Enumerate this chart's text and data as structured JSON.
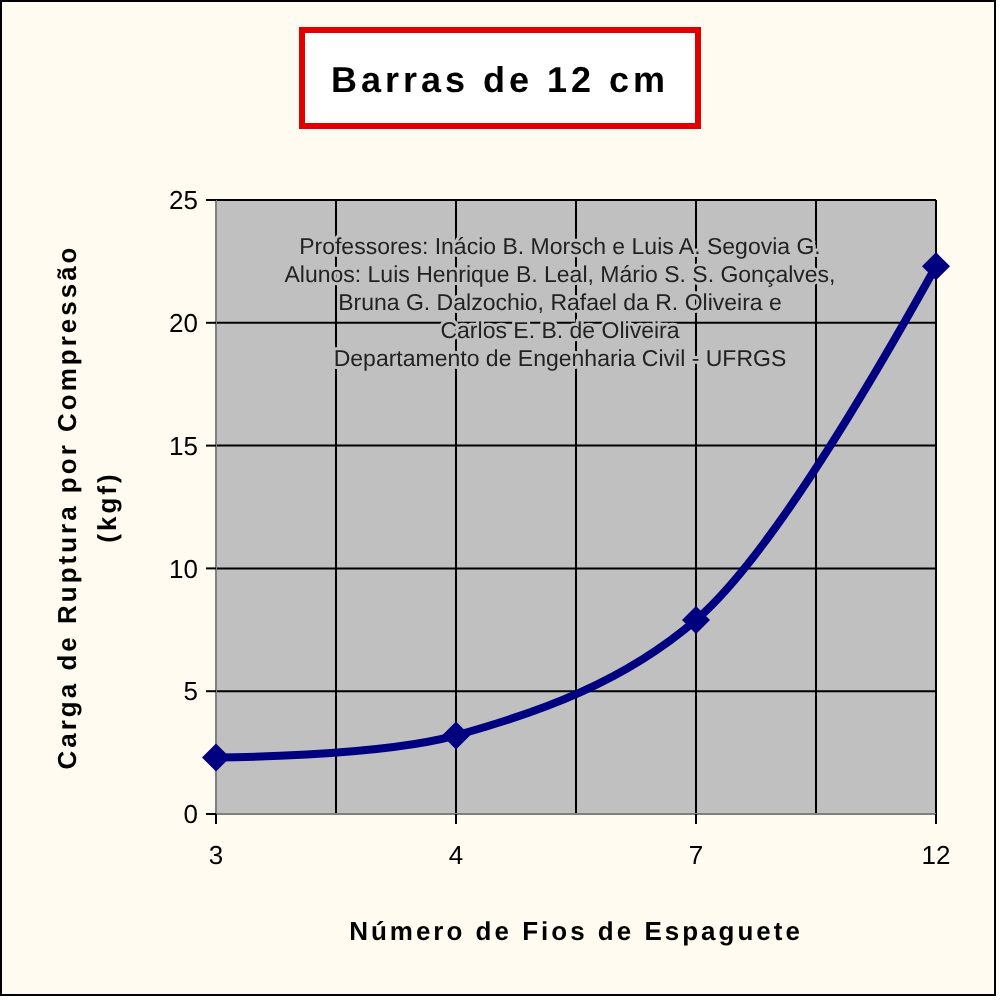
{
  "chart_data": {
    "type": "line",
    "title": "Barras de 12 cm",
    "xlabel": "Número de Fios de Espaguete",
    "ylabel": "Carga de Ruptura por Compressão (kgf)",
    "categories": [
      "3",
      "4",
      "7",
      "12"
    ],
    "series": [
      {
        "color": "#000080",
        "values": [
          2.3,
          3.2,
          7.9,
          22.3
        ]
      }
    ],
    "ylim": [
      0,
      25
    ],
    "yticks": [
      0,
      5,
      10,
      15,
      20,
      25
    ],
    "grid": true,
    "marker": "diamond",
    "line_style": "solid",
    "annotations": [
      "Professores: Inácio B. Morsch e Luis A. Segovia G.\nAlunos: Luis Henrique B. Leal, Mário S. S. Gonçalves,\nBruna G. Dalzochio, Rafael da R. Oliveira e\nCarlos E. B. de Oliveira\nDepartamento de Engenharia Civil - UFRGS"
    ]
  }
}
